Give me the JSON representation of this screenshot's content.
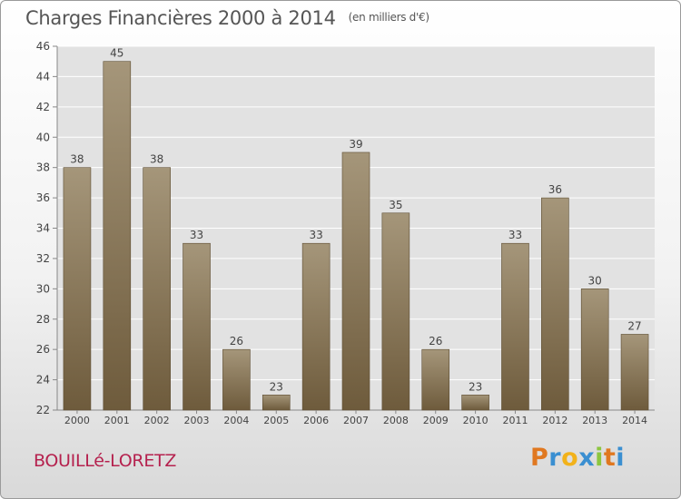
{
  "header": {
    "title": "Charges Financières 2000 à 2014",
    "unit": "(en milliers d'€)"
  },
  "footer": {
    "commune": "BOUILLé-LORETZ",
    "logo_letters": [
      "P",
      "r",
      "o",
      "x",
      "i",
      "t",
      "i"
    ]
  },
  "colors": {
    "bar_top": "#a5967a",
    "bar_bottom": "#6e5b3c",
    "bar_border": "#5c4c31",
    "plot_bg": "#e2e2e2",
    "grid": "#ffffff",
    "logo": [
      "#e07820",
      "#3a8fd1",
      "#f2b21a",
      "#3a8fd1",
      "#8cc63f",
      "#e07820",
      "#3a8fd1"
    ]
  },
  "chart_data": {
    "type": "bar",
    "categories": [
      "2000",
      "2001",
      "2002",
      "2003",
      "2004",
      "2005",
      "2006",
      "2007",
      "2008",
      "2009",
      "2010",
      "2011",
      "2012",
      "2013",
      "2014"
    ],
    "values": [
      38,
      45,
      38,
      33,
      26,
      23,
      33,
      39,
      35,
      26,
      23,
      33,
      36,
      30,
      27
    ],
    "data_labels": [
      "38",
      "45",
      "38",
      "33",
      "26",
      "23",
      "33",
      "39",
      "35",
      "26",
      "23",
      "33",
      "36",
      "30",
      "27"
    ],
    "yticks": [
      22,
      24,
      26,
      28,
      30,
      32,
      34,
      36,
      38,
      40,
      42,
      44,
      46
    ],
    "ytick_labels": [
      "22",
      "24",
      "26",
      "28",
      "30",
      "32",
      "34",
      "36",
      "38",
      "40",
      "42",
      "44",
      "46"
    ],
    "ylim": [
      22,
      46
    ],
    "grid": true,
    "legend": false
  }
}
